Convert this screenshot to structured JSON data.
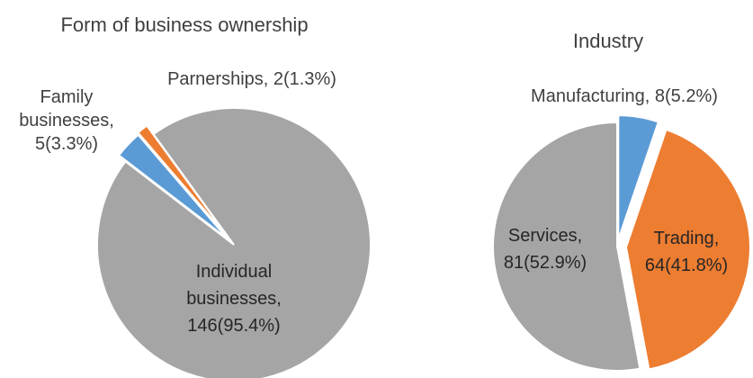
{
  "chart_data": [
    {
      "type": "pie",
      "title": "Form of business ownership",
      "colors": [
        "#a5a5a5",
        "#5b9bd5",
        "#ed7d31"
      ],
      "slices": [
        {
          "category": "Individual businesses",
          "value": 146,
          "percent": 95.4,
          "label_lines": [
            "Individual",
            "businesses,",
            "146(95.4%)"
          ]
        },
        {
          "category": "Family businesses",
          "value": 5,
          "percent": 3.3,
          "label_lines": [
            "Family",
            "businesses,",
            "5(3.3%)"
          ]
        },
        {
          "category": "Parnerships",
          "value": 2,
          "percent": 1.3,
          "label_lines": [
            "Parnerships, 2(1.3%)"
          ]
        }
      ]
    },
    {
      "type": "pie",
      "title": "Industry",
      "colors": [
        "#5b9bd5",
        "#ed7d31",
        "#a5a5a5"
      ],
      "slices": [
        {
          "category": "Manufacturing",
          "value": 8,
          "percent": 5.2,
          "label_lines": [
            "Manufacturing, 8(5.2%)"
          ]
        },
        {
          "category": "Trading",
          "value": 64,
          "percent": 41.8,
          "label_lines": [
            "Trading,",
            "64(41.8%)"
          ]
        },
        {
          "category": "Services",
          "value": 81,
          "percent": 52.9,
          "label_lines": [
            "Services,",
            "81(52.9%)"
          ]
        }
      ]
    }
  ]
}
